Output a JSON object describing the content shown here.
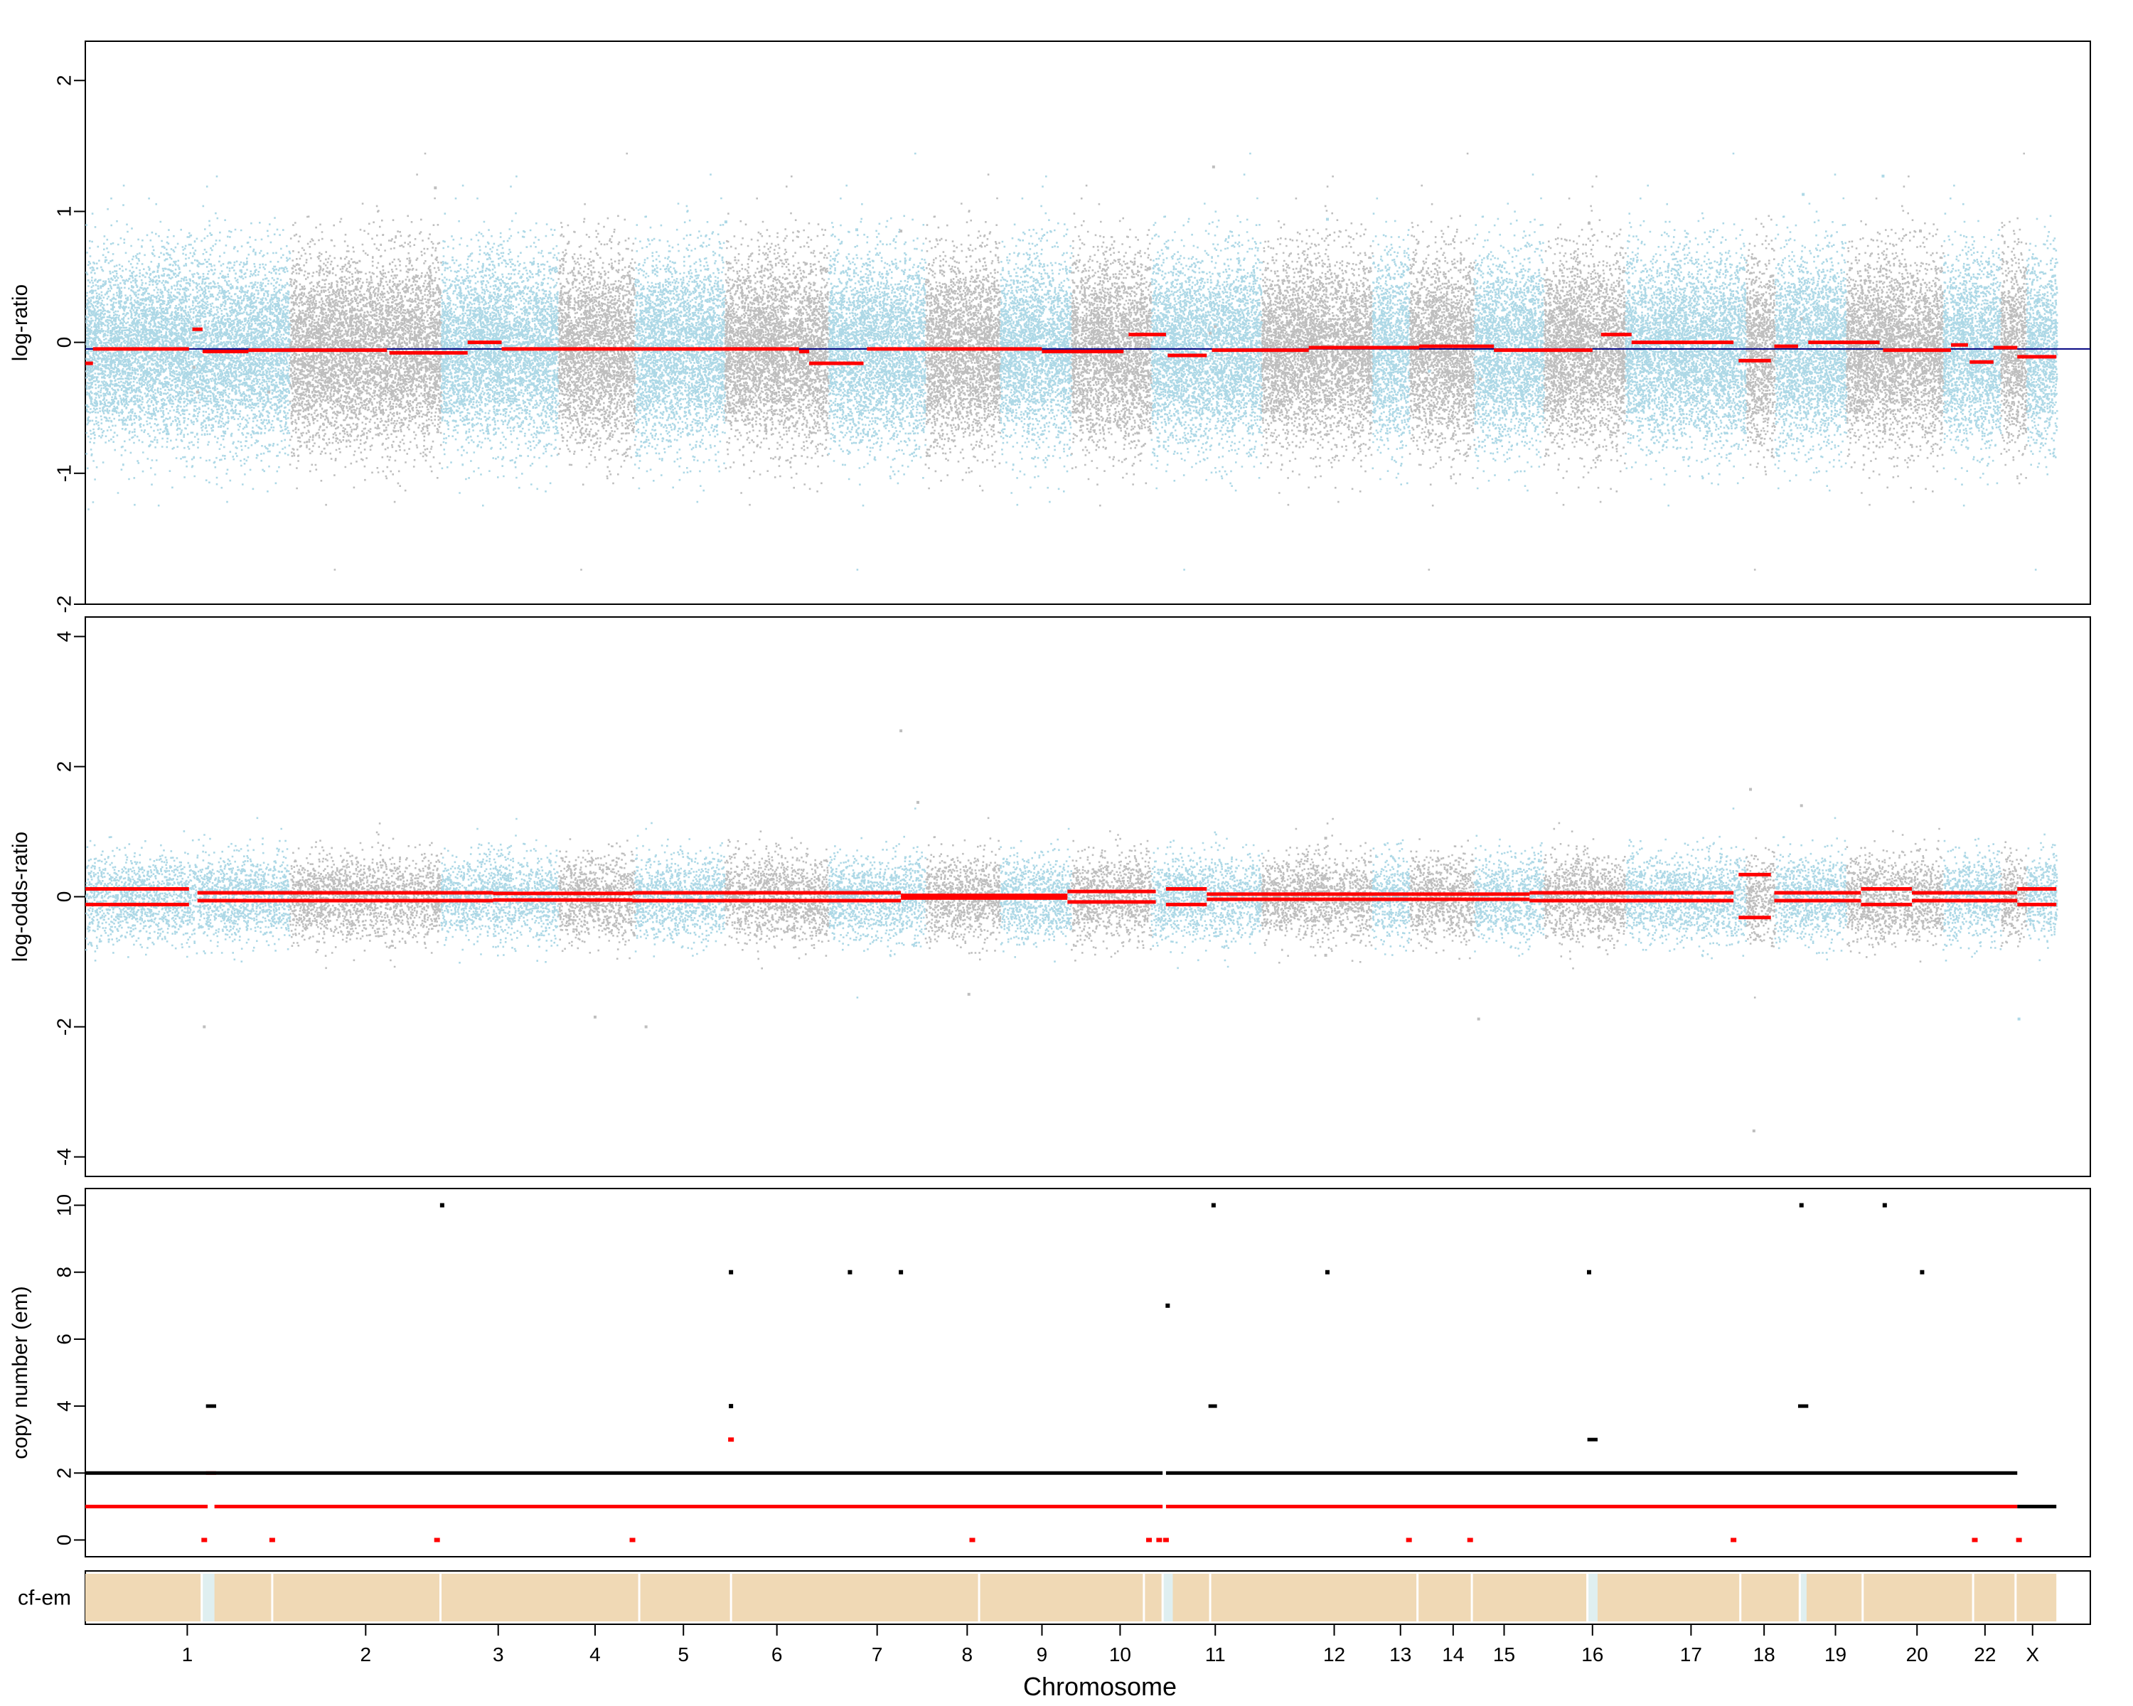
{
  "colors": {
    "point_a": "#add8e6",
    "point_b": "#bebebe",
    "segment": "#ff0000",
    "baseline": "#000080",
    "cn_total": "#000000",
    "cn_minor": "#ff0000",
    "cf_fill": "#f0d9b5",
    "cf_gap": "#dfeff0"
  },
  "chart_data": [
    {
      "type": "scatter",
      "panel": "logR",
      "ylabel": "log-ratio",
      "ylim": [
        -2,
        2.3
      ],
      "yticks": [
        -2,
        -1,
        0,
        1,
        2
      ],
      "xlabel": "",
      "baseline": -0.05,
      "point_spread": 0.35,
      "segments": [
        {
          "x0": 0.0,
          "x1": 0.45,
          "y": -0.16
        },
        {
          "x0": 0.45,
          "x1": 6.1,
          "y": -0.05
        },
        {
          "x0": 6.3,
          "x1": 6.9,
          "y": 0.1
        },
        {
          "x0": 6.9,
          "x1": 9.6,
          "y": -0.07
        },
        {
          "x0": 9.6,
          "x1": 17.75,
          "y": -0.06
        },
        {
          "x0": 17.9,
          "x1": 22.5,
          "y": -0.08
        },
        {
          "x0": 22.5,
          "x1": 24.5,
          "y": 0.0
        },
        {
          "x0": 24.5,
          "x1": 33.0,
          "y": -0.05
        },
        {
          "x0": 33.0,
          "x1": 37.5,
          "y": -0.05
        },
        {
          "x0": 37.5,
          "x1": 42.0,
          "y": -0.05
        },
        {
          "x0": 42.0,
          "x1": 42.6,
          "y": -0.07
        },
        {
          "x0": 42.6,
          "x1": 45.8,
          "y": -0.16
        },
        {
          "x0": 46.0,
          "x1": 50.9,
          "y": -0.05
        },
        {
          "x0": 50.9,
          "x1": 56.3,
          "y": -0.05
        },
        {
          "x0": 56.3,
          "x1": 61.1,
          "y": -0.07
        },
        {
          "x0": 61.4,
          "x1": 63.6,
          "y": 0.06
        },
        {
          "x0": 63.7,
          "x1": 66.0,
          "y": -0.1
        },
        {
          "x0": 66.3,
          "x1": 72.0,
          "y": -0.06
        },
        {
          "x0": 72.0,
          "x1": 78.5,
          "y": -0.04
        },
        {
          "x0": 78.5,
          "x1": 80.5,
          "y": -0.03
        },
        {
          "x0": 80.5,
          "x1": 82.9,
          "y": -0.03
        },
        {
          "x0": 82.9,
          "x1": 88.7,
          "y": -0.06
        },
        {
          "x0": 89.2,
          "x1": 91.0,
          "y": 0.06
        },
        {
          "x0": 91.0,
          "x1": 97.0,
          "y": 0.0
        },
        {
          "x0": 97.3,
          "x1": 99.2,
          "y": -0.14
        },
        {
          "x0": 99.4,
          "x1": 100.8,
          "y": -0.03
        },
        {
          "x0": 101.4,
          "x1": 105.6,
          "y": 0.0
        },
        {
          "x0": 105.8,
          "x1": 109.8,
          "y": -0.06
        },
        {
          "x0": 109.8,
          "x1": 110.8,
          "y": -0.02
        },
        {
          "x0": 110.9,
          "x1": 112.3,
          "y": -0.15
        },
        {
          "x0": 112.3,
          "x1": 113.7,
          "y": -0.04
        },
        {
          "x0": 113.7,
          "x1": 116.0,
          "y": -0.11
        }
      ],
      "outliers": [
        {
          "x": 6.4,
          "y": -0.19
        },
        {
          "x": 6.6,
          "y": -0.38
        },
        {
          "x": 10.8,
          "y": -0.38
        },
        {
          "x": 20.6,
          "y": 1.18
        },
        {
          "x": 20.6,
          "y": -0.33
        },
        {
          "x": 32.0,
          "y": -0.28
        },
        {
          "x": 37.7,
          "y": 0.92
        },
        {
          "x": 38.2,
          "y": 0.06
        },
        {
          "x": 45.4,
          "y": 0.86
        },
        {
          "x": 48.0,
          "y": 0.85
        },
        {
          "x": 52.1,
          "y": -0.28
        },
        {
          "x": 63.1,
          "y": -0.3
        },
        {
          "x": 63.7,
          "y": 0.72
        },
        {
          "x": 66.2,
          "y": 0.07
        },
        {
          "x": 66.4,
          "y": 1.34
        },
        {
          "x": 66.5,
          "y": 0.12
        },
        {
          "x": 73.1,
          "y": 0.94
        },
        {
          "x": 79.1,
          "y": -0.22
        },
        {
          "x": 82.1,
          "y": -0.28
        },
        {
          "x": 88.4,
          "y": 0.12
        },
        {
          "x": 88.5,
          "y": 0.91
        },
        {
          "x": 98.9,
          "y": -0.33
        },
        {
          "x": 101.0,
          "y": 0.18
        },
        {
          "x": 101.1,
          "y": 1.13
        },
        {
          "x": 105.8,
          "y": 1.27
        },
        {
          "x": 108.0,
          "y": 0.85
        },
        {
          "x": 111.4,
          "y": -0.22
        }
      ]
    },
    {
      "type": "scatter",
      "panel": "logOR",
      "ylabel": "log-odds-ratio",
      "ylim": [
        -4.3,
        4.3
      ],
      "yticks": [
        -4,
        -2,
        0,
        2,
        4
      ],
      "xlabel": "",
      "point_spread": 0.32,
      "segments": [
        {
          "x0": 0.0,
          "x1": 6.1,
          "y": 0.12
        },
        {
          "x0": 0.0,
          "x1": 6.1,
          "y": -0.12
        },
        {
          "x0": 6.6,
          "x1": 24.0,
          "y": 0.06
        },
        {
          "x0": 6.6,
          "x1": 24.0,
          "y": -0.06
        },
        {
          "x0": 24.0,
          "x1": 32.2,
          "y": 0.05
        },
        {
          "x0": 24.0,
          "x1": 32.2,
          "y": -0.05
        },
        {
          "x0": 32.2,
          "x1": 48.0,
          "y": 0.06
        },
        {
          "x0": 32.2,
          "x1": 48.0,
          "y": -0.06
        },
        {
          "x0": 48.0,
          "x1": 57.8,
          "y": 0.02
        },
        {
          "x0": 48.0,
          "x1": 57.8,
          "y": -0.02
        },
        {
          "x0": 57.8,
          "x1": 63.0,
          "y": 0.08
        },
        {
          "x0": 57.8,
          "x1": 63.0,
          "y": -0.08
        },
        {
          "x0": 63.6,
          "x1": 66.0,
          "y": 0.12
        },
        {
          "x0": 63.6,
          "x1": 66.0,
          "y": -0.12
        },
        {
          "x0": 66.0,
          "x1": 73.0,
          "y": 0.04
        },
        {
          "x0": 66.0,
          "x1": 73.0,
          "y": -0.04
        },
        {
          "x0": 73.0,
          "x1": 85.0,
          "y": 0.04
        },
        {
          "x0": 73.0,
          "x1": 85.0,
          "y": -0.04
        },
        {
          "x0": 85.0,
          "x1": 97.0,
          "y": 0.06
        },
        {
          "x0": 85.0,
          "x1": 97.0,
          "y": -0.06
        },
        {
          "x0": 97.3,
          "x1": 99.2,
          "y": 0.34
        },
        {
          "x0": 97.3,
          "x1": 99.2,
          "y": -0.32
        },
        {
          "x0": 99.4,
          "x1": 104.5,
          "y": 0.06
        },
        {
          "x0": 99.4,
          "x1": 104.5,
          "y": -0.06
        },
        {
          "x0": 104.5,
          "x1": 107.5,
          "y": 0.12
        },
        {
          "x0": 104.5,
          "x1": 107.5,
          "y": -0.12
        },
        {
          "x0": 107.5,
          "x1": 113.7,
          "y": 0.06
        },
        {
          "x0": 107.5,
          "x1": 113.7,
          "y": -0.06
        },
        {
          "x0": 113.7,
          "x1": 116.0,
          "y": 0.12
        },
        {
          "x0": 113.7,
          "x1": 116.0,
          "y": -0.12
        }
      ],
      "outliers": [
        {
          "x": 7.0,
          "y": -2.0
        },
        {
          "x": 30.0,
          "y": -1.85
        },
        {
          "x": 48.0,
          "y": 2.55
        },
        {
          "x": 49.0,
          "y": 1.45
        },
        {
          "x": 52.0,
          "y": -1.5
        },
        {
          "x": 33.0,
          "y": -2.0
        },
        {
          "x": 73.0,
          "y": -0.9
        },
        {
          "x": 73.0,
          "y": 0.9
        },
        {
          "x": 82.0,
          "y": -1.88
        },
        {
          "x": 98.2,
          "y": -3.6
        },
        {
          "x": 98.0,
          "y": 1.65
        },
        {
          "x": 113.8,
          "y": -1.88
        },
        {
          "x": 101.0,
          "y": 1.4
        }
      ]
    },
    {
      "type": "scatter",
      "panel": "copynumber",
      "ylabel": "copy number (em)",
      "ylim": [
        -0.5,
        10.5
      ],
      "yticks": [
        0,
        2,
        4,
        6,
        8,
        10
      ],
      "xlabel": "",
      "total_segments": [
        {
          "x0": 0.0,
          "x1": 63.4,
          "y": 2
        },
        {
          "x0": 63.6,
          "x1": 113.7,
          "y": 2
        },
        {
          "x0": 113.7,
          "x1": 116.0,
          "y": 1
        },
        {
          "x0": 7.1,
          "x1": 7.7,
          "y": 4
        },
        {
          "x0": 66.1,
          "x1": 66.6,
          "y": 4
        },
        {
          "x": 0,
          "x0": 88.4,
          "x1": 89.0,
          "y": 3
        },
        {
          "x0": 100.8,
          "x1": 101.4,
          "y": 4
        }
      ],
      "minor_segments": [
        {
          "x0": 0.0,
          "x1": 7.2,
          "y": 1
        },
        {
          "x0": 7.6,
          "x1": 63.4,
          "y": 1
        },
        {
          "x0": 63.6,
          "x1": 113.7,
          "y": 1
        },
        {
          "x0": 7.1,
          "x1": 7.7,
          "y": 2
        }
      ],
      "total_points": [
        {
          "x": 21.0,
          "y": 10
        },
        {
          "x": 38.0,
          "y": 8
        },
        {
          "x": 45.0,
          "y": 8
        },
        {
          "x": 48.0,
          "y": 8
        },
        {
          "x": 38.0,
          "y": 4
        },
        {
          "x": 63.7,
          "y": 7
        },
        {
          "x": 66.4,
          "y": 10
        },
        {
          "x": 73.1,
          "y": 8
        },
        {
          "x": 88.5,
          "y": 8
        },
        {
          "x": 101.0,
          "y": 10
        },
        {
          "x": 105.9,
          "y": 10
        },
        {
          "x": 108.1,
          "y": 8
        }
      ],
      "minor_points": [
        {
          "x": 7.0,
          "y": 0
        },
        {
          "x": 11.0,
          "y": 0
        },
        {
          "x": 20.7,
          "y": 0
        },
        {
          "x": 32.2,
          "y": 0
        },
        {
          "x": 38.0,
          "y": 3
        },
        {
          "x": 52.2,
          "y": 0
        },
        {
          "x": 62.6,
          "y": 0
        },
        {
          "x": 63.2,
          "y": 0
        },
        {
          "x": 63.6,
          "y": 0
        },
        {
          "x": 77.9,
          "y": 0
        },
        {
          "x": 81.5,
          "y": 0
        },
        {
          "x": 97.0,
          "y": 0
        },
        {
          "x": 111.2,
          "y": 0
        },
        {
          "x": 113.8,
          "y": 0
        }
      ]
    },
    {
      "type": "heatmap",
      "panel": "cellularity",
      "ylabel": "cf-em",
      "xlabel": "Chromosome",
      "gaps": [
        6.85,
        11.0,
        20.9,
        32.6,
        38.0,
        52.6,
        62.3,
        63.4,
        66.2,
        78.4,
        81.6,
        88.4,
        97.4,
        100.9,
        104.6,
        111.1,
        113.6
      ],
      "wide_gaps": [
        {
          "x0": 6.9,
          "x1": 7.6
        },
        {
          "x0": 63.4,
          "x1": 64.0
        },
        {
          "x0": 88.4,
          "x1": 89.0
        },
        {
          "x0": 100.9,
          "x1": 101.3
        }
      ],
      "tick_labels": [
        "1",
        "2",
        "3",
        "4",
        "5",
        "6",
        "7",
        "8",
        "9",
        "10",
        "11",
        "12",
        "13",
        "14",
        "15",
        "16",
        "17",
        "18",
        "19",
        "20",
        "22",
        "X"
      ],
      "tick_positions": [
        6.0,
        16.5,
        24.3,
        30.0,
        35.2,
        40.7,
        46.6,
        51.9,
        56.3,
        60.9,
        66.5,
        73.5,
        77.4,
        80.5,
        83.5,
        88.7,
        94.5,
        98.8,
        103.0,
        107.8,
        111.8,
        114.6
      ]
    }
  ],
  "chromosome_bands": [
    0,
    12.0,
    20.9,
    27.8,
    32.3,
    37.6,
    43.7,
    49.4,
    53.8,
    58.0,
    62.7,
    69.2,
    75.7,
    77.9,
    81.7,
    85.8,
    90.6,
    97.7,
    99.4,
    103.6,
    109.3,
    112.7,
    114.2,
    116.0
  ]
}
